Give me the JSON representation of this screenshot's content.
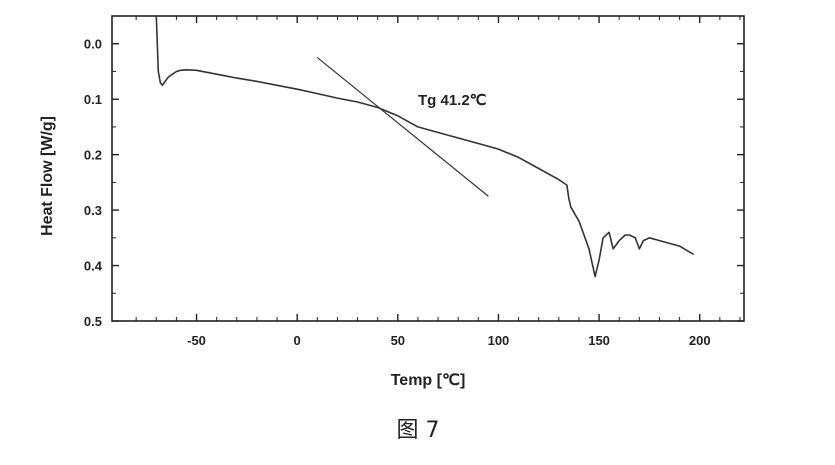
{
  "chart_data": {
    "type": "line",
    "xlabel": "Temp [℃]",
    "ylabel": "Heat Flow [W/g]",
    "xlim": [
      -92,
      222
    ],
    "ylim": [
      0.5,
      -0.05
    ],
    "y_inverted": true,
    "x_ticks": [
      -50,
      0,
      50,
      100,
      150,
      200
    ],
    "x_tick_labels": [
      "-50",
      "0",
      "50",
      "100",
      "150",
      "200"
    ],
    "y_ticks": [
      0.0,
      0.1,
      0.2,
      0.3,
      0.4,
      0.5
    ],
    "y_tick_labels": [
      "0.0",
      "0.1",
      "0.2",
      "0.3",
      "0.4",
      "0.5"
    ],
    "grid": false,
    "series": [
      {
        "x": [
          -70,
          -69.5,
          -69,
          -68,
          -67,
          -66,
          -65,
          -64,
          -62,
          -60,
          -58,
          -55,
          -50,
          -40,
          -30,
          -20,
          -10,
          0,
          10,
          20,
          30,
          40,
          50,
          55,
          60,
          70,
          80,
          90,
          100,
          110,
          120,
          130,
          134,
          135,
          136,
          140,
          145,
          148,
          150,
          152,
          155,
          157,
          160,
          163,
          165,
          168,
          170,
          172,
          175,
          180,
          185,
          190,
          197
        ],
        "y": [
          -0.05,
          0.0,
          0.05,
          0.07,
          0.075,
          0.07,
          0.065,
          0.06,
          0.055,
          0.05,
          0.048,
          0.047,
          0.048,
          0.055,
          0.062,
          0.068,
          0.075,
          0.082,
          0.09,
          0.098,
          0.105,
          0.115,
          0.13,
          0.14,
          0.15,
          0.16,
          0.17,
          0.18,
          0.19,
          0.205,
          0.225,
          0.245,
          0.255,
          0.28,
          0.295,
          0.32,
          0.37,
          0.42,
          0.39,
          0.35,
          0.34,
          0.37,
          0.355,
          0.345,
          0.345,
          0.35,
          0.37,
          0.355,
          0.35,
          0.355,
          0.36,
          0.365,
          0.38
        ]
      }
    ],
    "tangent_lines": [
      {
        "x": [
          10,
          95
        ],
        "y": [
          0.025,
          0.275
        ]
      }
    ],
    "annotations": [
      {
        "text": "Tg 41.2℃",
        "x": 60,
        "y": 0.11
      }
    ],
    "caption": "图 7"
  }
}
